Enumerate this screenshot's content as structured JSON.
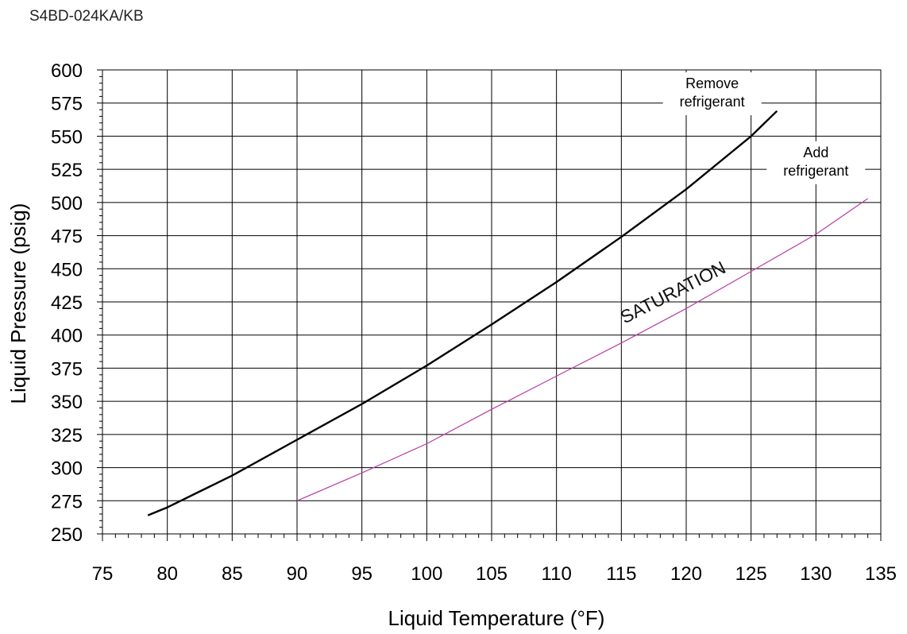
{
  "header": {
    "model": "S4BD-024KA/KB"
  },
  "chart_data": {
    "type": "line",
    "xlabel": "Liquid Temperature (°F)",
    "ylabel": "Liquid Pressure (psig)",
    "xlim": [
      75,
      135
    ],
    "ylim": [
      250,
      600
    ],
    "x_ticks": [
      "75",
      "80",
      "85",
      "90",
      "95",
      "100",
      "105",
      "110",
      "115",
      "120",
      "125",
      "130",
      "135"
    ],
    "y_ticks": [
      "250",
      "275",
      "300",
      "325",
      "350",
      "375",
      "400",
      "425",
      "450",
      "475",
      "500",
      "525",
      "550",
      "575",
      "600"
    ],
    "grid": true,
    "series": [
      {
        "name": "",
        "color": "#000000",
        "x": [
          78.5,
          80,
          85,
          90,
          95,
          100,
          105,
          110,
          115,
          120,
          125,
          127
        ],
        "y": [
          264,
          270,
          294,
          321,
          348,
          377,
          408,
          440,
          474,
          510,
          550,
          569
        ]
      },
      {
        "name": "SATURATION",
        "color": "#b83ca6",
        "x": [
          90,
          95,
          100,
          105,
          110,
          115,
          120,
          125,
          130,
          134
        ],
        "y": [
          275,
          296,
          318,
          344,
          369,
          394,
          420,
          448,
          476,
          503
        ]
      }
    ],
    "annotations": [
      {
        "id": "remove",
        "lines": [
          "Remove",
          "refrigerant"
        ],
        "x": 122,
        "y": 582
      },
      {
        "id": "add",
        "lines": [
          "Add",
          "refrigerant"
        ],
        "x": 130,
        "y": 530
      },
      {
        "id": "saturation",
        "lines": [
          "SATURATION"
        ],
        "x": 119.2,
        "y": 428
      }
    ]
  }
}
